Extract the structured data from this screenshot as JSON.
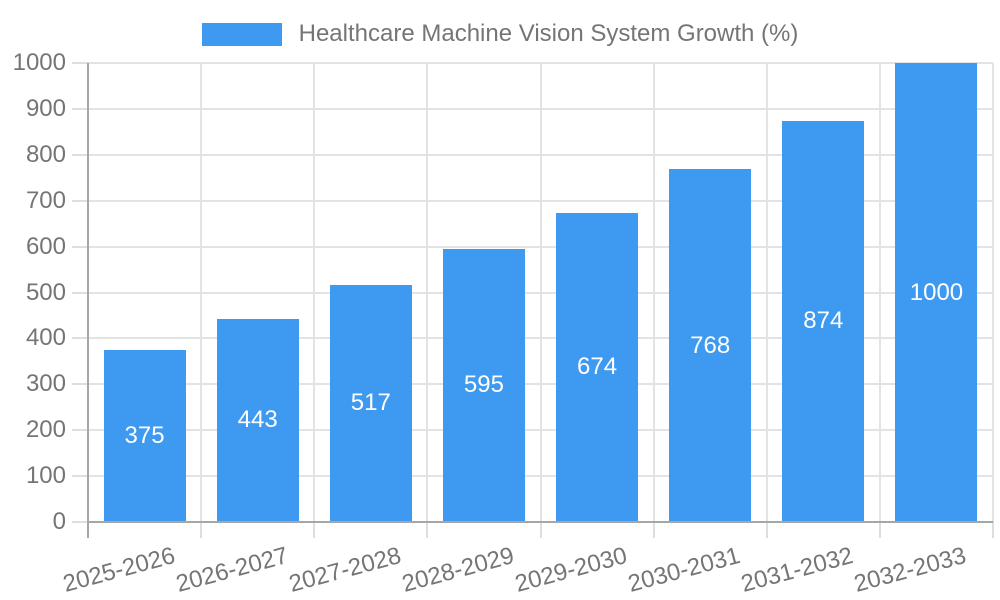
{
  "chart_data": {
    "type": "bar",
    "categories": [
      "2025-2026",
      "2026-2027",
      "2027-2028",
      "2028-2029",
      "2029-2030",
      "2030-2031",
      "2031-2032",
      "2032-2033"
    ],
    "series": [
      {
        "name": "Healthcare Machine Vision System Growth (%)",
        "values": [
          375,
          443,
          517,
          595,
          674,
          768,
          874,
          1000
        ]
      }
    ],
    "data_labels": [
      375,
      443,
      517,
      595,
      674,
      768,
      874,
      1000
    ],
    "xlabel": "",
    "ylabel": "",
    "ylim": [
      0,
      1000
    ],
    "yticks": [
      0,
      100,
      200,
      300,
      400,
      500,
      600,
      700,
      800,
      900,
      1000
    ],
    "grid": true,
    "legend_position": "top",
    "bar_color": "#3e9af0",
    "data_label_color": "#ffffff",
    "axis_text_color": "#757575",
    "gridline_color": "#e3e3e3",
    "axis_line_color": "#a6a6a6",
    "tick_color": "#dedede",
    "background_color": "#ffffff"
  }
}
